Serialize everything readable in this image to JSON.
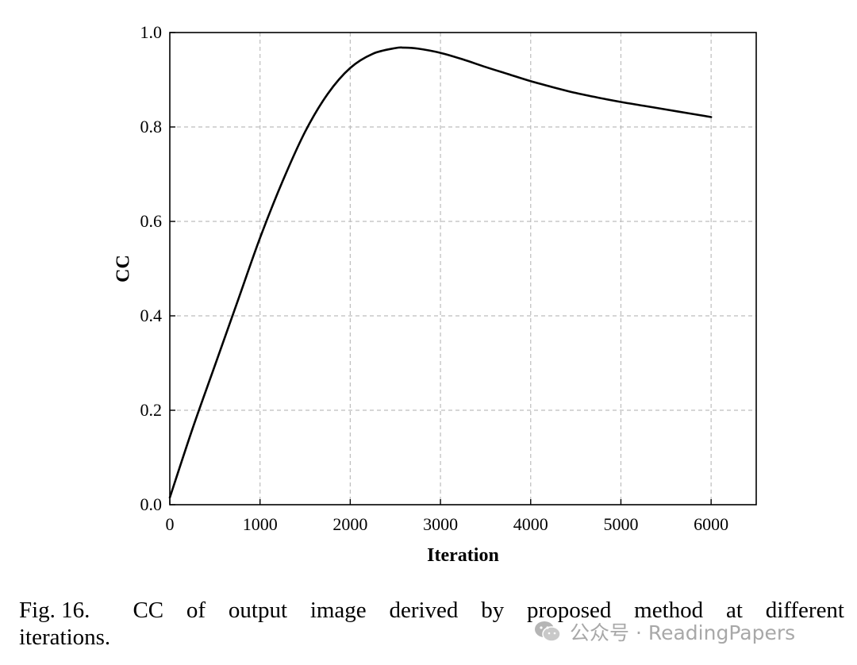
{
  "chart_data": {
    "type": "line",
    "xlabel": "Iteration",
    "ylabel": "CC",
    "xlim": [
      0,
      6500
    ],
    "ylim": [
      0.0,
      1.0
    ],
    "xticks": [
      0,
      1000,
      2000,
      3000,
      4000,
      5000,
      6000
    ],
    "xtick_labels": [
      "0",
      "1000",
      "2000",
      "3000",
      "4000",
      "5000",
      "6000"
    ],
    "yticks": [
      0.0,
      0.2,
      0.4,
      0.6,
      0.8,
      1.0
    ],
    "ytick_labels": [
      "0.0",
      "0.2",
      "0.4",
      "0.6",
      "0.8",
      "1.0"
    ],
    "grid": true,
    "series": [
      {
        "color": "#000000",
        "x": [
          0,
          250,
          500,
          750,
          1000,
          1250,
          1500,
          1750,
          2000,
          2250,
          2500,
          2600,
          2750,
          3000,
          3250,
          3500,
          3750,
          4000,
          4250,
          4500,
          4750,
          5000,
          5250,
          5500,
          5750,
          6000
        ],
        "y": [
          0.015,
          0.16,
          0.295,
          0.43,
          0.565,
          0.685,
          0.79,
          0.87,
          0.925,
          0.955,
          0.967,
          0.968,
          0.966,
          0.957,
          0.943,
          0.927,
          0.912,
          0.897,
          0.884,
          0.872,
          0.862,
          0.853,
          0.845,
          0.837,
          0.829,
          0.821
        ]
      }
    ]
  },
  "caption": {
    "label": "Fig. 16.",
    "line1_words": [
      "CC",
      "of",
      "output",
      "image",
      "derived",
      "by",
      "proposed",
      "method",
      "at",
      "different"
    ],
    "line2": "iterations."
  },
  "watermark": {
    "text": "公众号 · ReadingPapers",
    "icon": "wechat-icon"
  }
}
